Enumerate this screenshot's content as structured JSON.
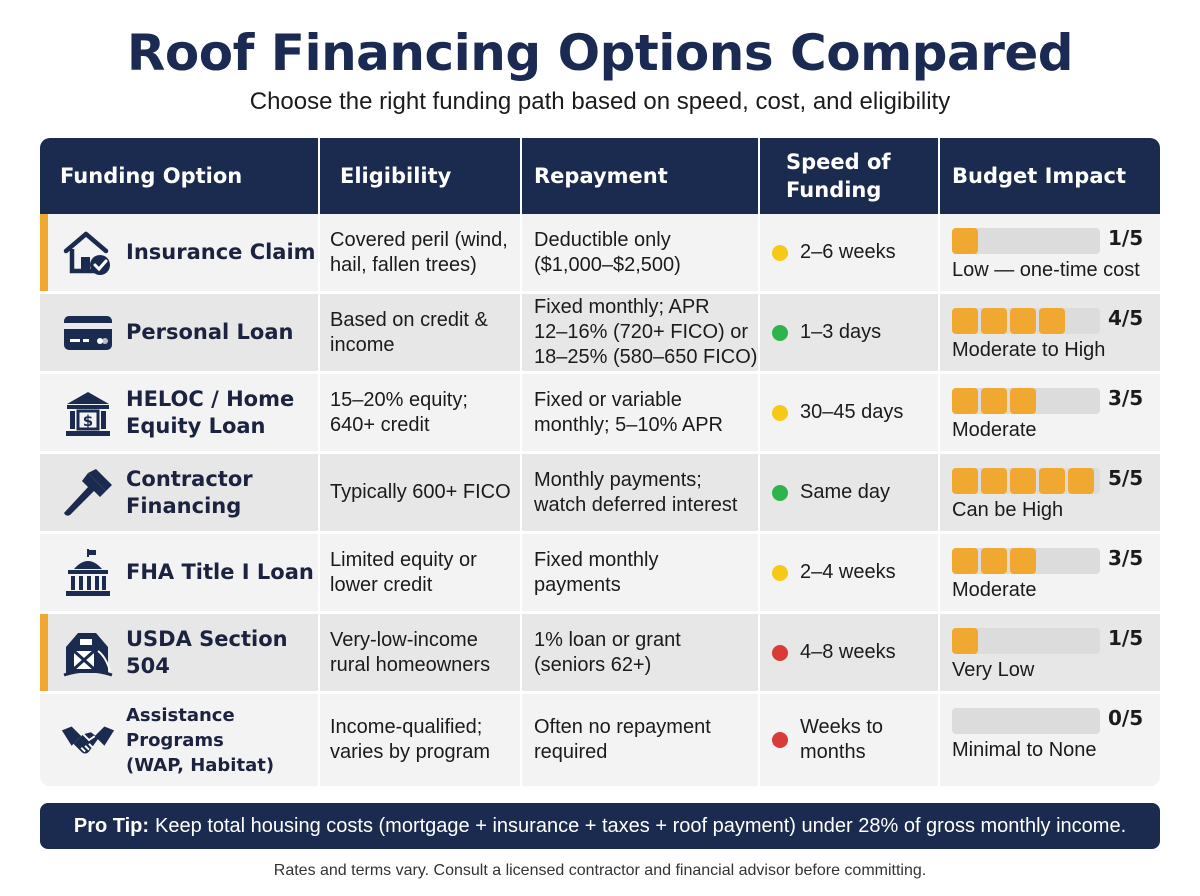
{
  "title": "Roof Financing Options Compared",
  "subtitle": "Choose the right funding path based on speed, cost, and eligibility",
  "colors": {
    "navy": "#1b2b4f",
    "accent": "#f0a830",
    "yellow": "#f6c817",
    "green": "#2fb34a",
    "red": "#d93c36"
  },
  "headers": {
    "option": "Funding Option",
    "eligibility": "Eligibility",
    "repayment": "Repayment",
    "speed_1": "Speed of",
    "speed_2": "Funding",
    "budget": "Budget Impact"
  },
  "rows": [
    {
      "icon": "house-check-icon",
      "name_1": "Insurance Claim",
      "name_2": "",
      "eligibility_1": "Covered peril (wind,",
      "eligibility_2": "hail, fallen trees)",
      "repayment_1": "Deductible only",
      "repayment_2": "($1,000–$2,500)",
      "repayment_3": "",
      "speed_status": "yellow",
      "speed_1": "2–6 weeks",
      "speed_2": "",
      "budget_score": 1,
      "budget_score_label": "1/5",
      "budget_label": "Low — one-time cost",
      "highlight": true
    },
    {
      "icon": "credit-card-icon",
      "name_1": "Personal Loan",
      "name_2": "",
      "eligibility_1": "Based on credit &",
      "eligibility_2": "income",
      "repayment_1": "Fixed monthly; APR",
      "repayment_2": "12–16% (720+ FICO) or",
      "repayment_3": "18–25% (580–650 FICO)",
      "speed_status": "green",
      "speed_1": "1–3 days",
      "speed_2": "",
      "budget_score": 4,
      "budget_score_label": "4/5",
      "budget_label": "Moderate to High",
      "highlight": false
    },
    {
      "icon": "bank-dollar-icon",
      "name_1": "HELOC / Home",
      "name_2": "Equity Loan",
      "eligibility_1": "15–20% equity;",
      "eligibility_2": "640+ credit",
      "repayment_1": "Fixed or variable",
      "repayment_2": "monthly; 5–10% APR",
      "repayment_3": "",
      "speed_status": "yellow",
      "speed_1": "30–45 days",
      "speed_2": "",
      "budget_score": 3,
      "budget_score_label": "3/5",
      "budget_label": "Moderate",
      "highlight": false
    },
    {
      "icon": "hammer-icon",
      "name_1": "Contractor",
      "name_2": "Financing",
      "eligibility_1": "Typically 600+ FICO",
      "eligibility_2": "",
      "repayment_1": "Monthly payments;",
      "repayment_2": "watch deferred interest",
      "repayment_3": "",
      "speed_status": "green",
      "speed_1": "Same day",
      "speed_2": "",
      "budget_score": 5,
      "budget_score_label": "5/5",
      "budget_label": "Can be High",
      "highlight": false
    },
    {
      "icon": "capitol-icon",
      "name_1": "FHA Title I Loan",
      "name_2": "",
      "eligibility_1": "Limited equity or",
      "eligibility_2": "lower credit",
      "repayment_1": "Fixed monthly",
      "repayment_2": "payments",
      "repayment_3": "",
      "speed_status": "yellow",
      "speed_1": "2–4 weeks",
      "speed_2": "",
      "budget_score": 3,
      "budget_score_label": "3/5",
      "budget_label": "Moderate",
      "highlight": false
    },
    {
      "icon": "barn-icon",
      "name_1": "USDA Section 504",
      "name_2": "",
      "eligibility_1": "Very-low-income",
      "eligibility_2": "rural homeowners",
      "repayment_1": "1% loan or grant",
      "repayment_2": "(seniors 62+)",
      "repayment_3": "",
      "speed_status": "red",
      "speed_1": "4–8 weeks",
      "speed_2": "",
      "budget_score": 1,
      "budget_score_label": "1/5",
      "budget_label": "Very Low",
      "highlight": true
    },
    {
      "icon": "handshake-icon",
      "name_1": "Assistance Programs",
      "name_2": "(WAP, Habitat)",
      "eligibility_1": "Income-qualified;",
      "eligibility_2": "varies by program",
      "repayment_1": "Often no repayment",
      "repayment_2": "required",
      "repayment_3": "",
      "speed_status": "red",
      "speed_1": "Weeks to",
      "speed_2": "months",
      "budget_score": 0,
      "budget_score_label": "0/5",
      "budget_label": "Minimal to None",
      "highlight": false
    }
  ],
  "pro_tip": {
    "label": "Pro Tip:",
    "text": "Keep total housing costs (mortgage + insurance + taxes + roof payment) under 28% of gross monthly income."
  },
  "footer": "Rates and terms vary. Consult a licensed contractor and financial advisor before committing."
}
